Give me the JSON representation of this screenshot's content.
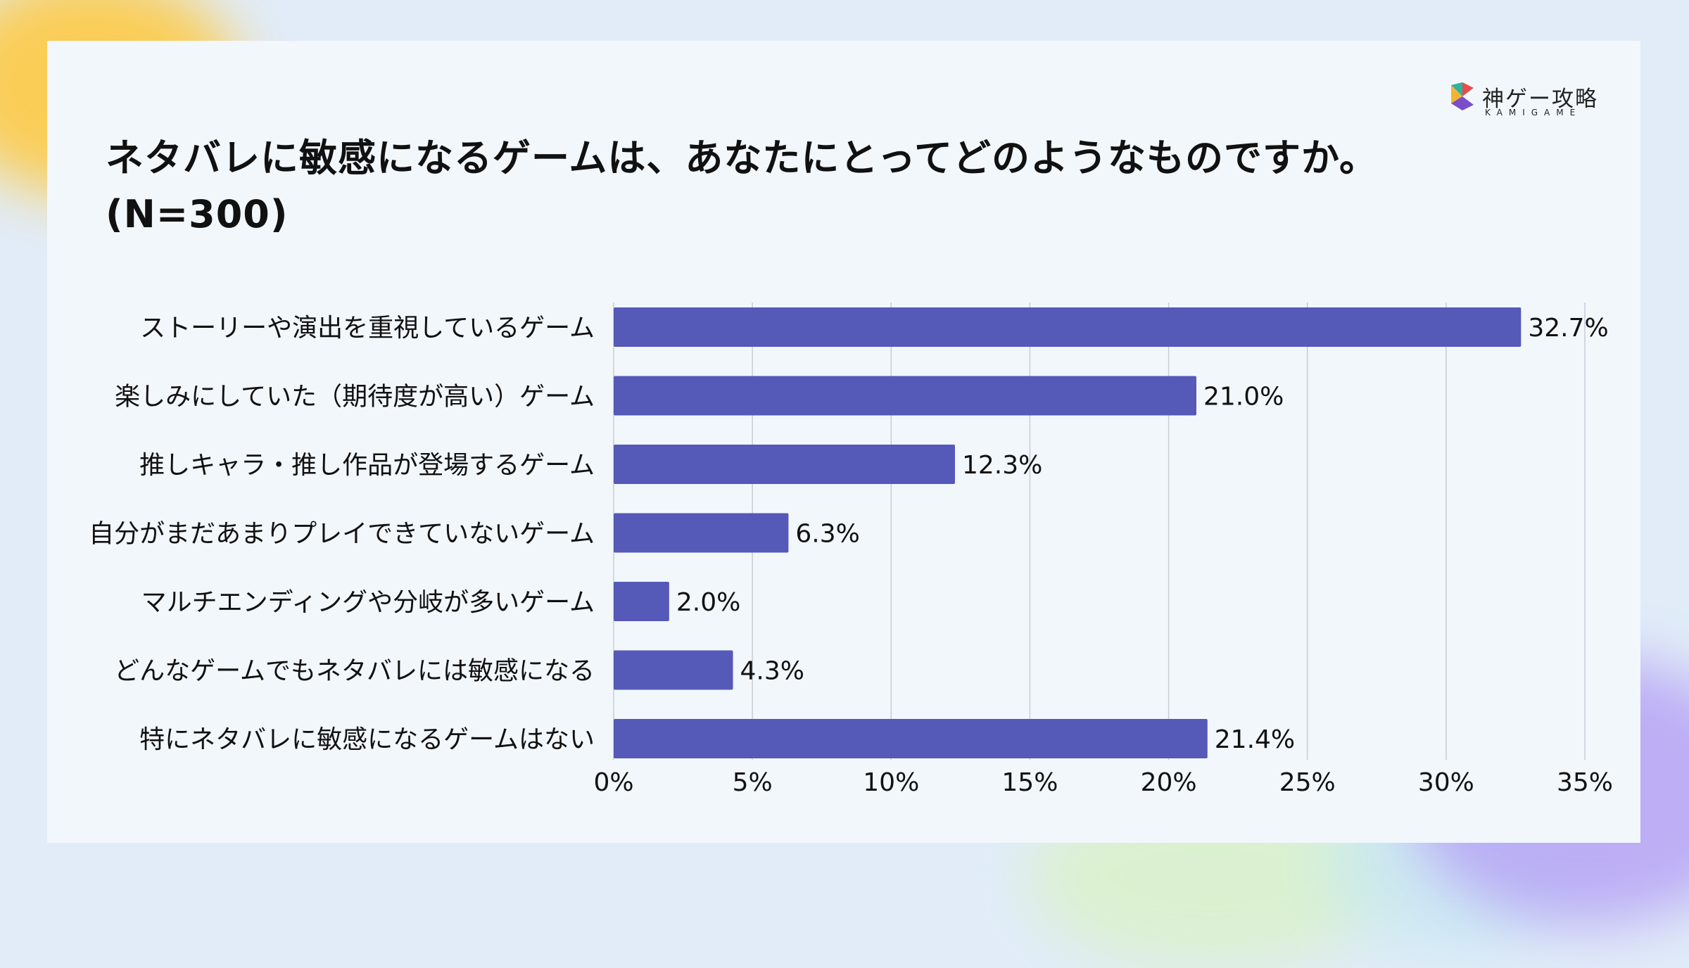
{
  "header": {
    "title": "ネタバレに敏感になるゲームは、あなたにとってどのようなものですか。\n(N=300)"
  },
  "logo": {
    "name": "神ゲー攻略",
    "subtitle": "KAMIGAME",
    "colors": [
      "#2db3a0",
      "#e84c4c",
      "#f2b533",
      "#7b4ec9"
    ]
  },
  "colors": {
    "bar": "#5559b8",
    "grid": "#c8ccd6",
    "text": "#111111",
    "card": "#f2f7fc",
    "background": "#e1ecf8"
  },
  "chart_data": {
    "type": "bar",
    "orientation": "horizontal",
    "categories": [
      "ストーリーや演出を重視しているゲーム",
      "楽しみにしていた（期待度が高い）ゲーム",
      "推しキャラ・推し作品が登場するゲーム",
      "自分がまだあまりプレイできていないゲーム",
      "マルチエンディングや分岐が多いゲーム",
      "どんなゲームでもネタバレには敏感になる",
      "特にネタバレに敏感になるゲームはない"
    ],
    "values": [
      32.7,
      21.0,
      12.3,
      6.3,
      2.0,
      4.3,
      21.4
    ],
    "value_labels": [
      "32.7%",
      "21.0%",
      "12.3%",
      "6.3%",
      "2.0%",
      "4.3%",
      "21.4%"
    ],
    "xlim": [
      0,
      35
    ],
    "xticks": [
      0,
      5,
      10,
      15,
      20,
      25,
      30,
      35
    ],
    "xtick_labels": [
      "0%",
      "5%",
      "10%",
      "15%",
      "20%",
      "25%",
      "30%",
      "35%"
    ],
    "grid": true,
    "legend": false
  }
}
